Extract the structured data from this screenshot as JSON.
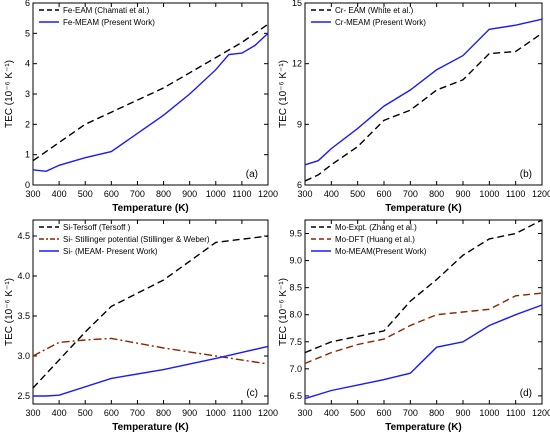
{
  "figure": {
    "panels": [
      "(a)",
      "(b)",
      "(c)",
      "(d)"
    ]
  },
  "chart_data": [
    {
      "type": "line",
      "panel_label": "(a)",
      "xlabel": "Temperature (K)",
      "ylabel": "TEC (10⁻⁶ K⁻¹)",
      "xlim": [
        300,
        1200
      ],
      "ylim": [
        0,
        6
      ],
      "xticks": [
        300,
        400,
        500,
        600,
        700,
        800,
        900,
        1000,
        1100,
        1200
      ],
      "yticks": [
        0,
        1,
        2,
        3,
        4,
        5,
        6
      ],
      "legend_position": "top-left",
      "series": [
        {
          "name": "Fe-EAM (Chamati et al.)",
          "color": "#000000",
          "style": "dashed",
          "x": [
            300,
            400,
            500,
            600,
            700,
            800,
            900,
            1000,
            1100,
            1200
          ],
          "y": [
            0.8,
            1.4,
            2.0,
            2.4,
            2.8,
            3.2,
            3.7,
            4.2,
            4.7,
            5.3
          ]
        },
        {
          "name": "Fe-MEAM (Present Work)",
          "color": "#1a1aff",
          "style": "solid",
          "x": [
            300,
            350,
            400,
            500,
            600,
            800,
            900,
            1000,
            1050,
            1100,
            1150,
            1200
          ],
          "y": [
            0.5,
            0.45,
            0.65,
            0.9,
            1.1,
            2.3,
            3.0,
            3.8,
            4.3,
            4.35,
            4.6,
            5.0
          ]
        }
      ]
    },
    {
      "type": "line",
      "panel_label": "(b)",
      "xlabel": "Temperature (K)",
      "ylabel": "TEC (10⁻⁶ K⁻¹)",
      "xlim": [
        300,
        1200
      ],
      "ylim": [
        6,
        15
      ],
      "xticks": [
        300,
        400,
        500,
        600,
        700,
        800,
        900,
        1000,
        1100,
        1200
      ],
      "yticks": [
        6,
        9,
        12,
        15
      ],
      "legend_position": "top-left",
      "series": [
        {
          "name": "Cr- EAM (White et al.)",
          "color": "#000000",
          "style": "dashed",
          "x": [
            300,
            350,
            400,
            500,
            600,
            700,
            800,
            900,
            1000,
            1100,
            1200
          ],
          "y": [
            6.2,
            6.5,
            7.0,
            7.9,
            9.2,
            9.7,
            10.7,
            11.2,
            12.5,
            12.6,
            13.5
          ]
        },
        {
          "name": "Cr-MEAM (Present Work)",
          "color": "#1a1aff",
          "style": "solid",
          "x": [
            300,
            350,
            400,
            500,
            600,
            700,
            800,
            900,
            1000,
            1100,
            1200
          ],
          "y": [
            7.0,
            7.2,
            7.8,
            8.8,
            9.9,
            10.7,
            11.7,
            12.4,
            13.7,
            13.9,
            14.2
          ]
        }
      ]
    },
    {
      "type": "line",
      "panel_label": "(c)",
      "xlabel": "Temperature (K)",
      "ylabel": "TEC (10⁻⁶ K⁻¹)",
      "xlim": [
        300,
        1200
      ],
      "ylim": [
        2.4,
        4.7
      ],
      "xticks": [
        300,
        400,
        500,
        600,
        700,
        800,
        900,
        1000,
        1100,
        1200
      ],
      "yticks": [
        2.5,
        3.0,
        3.5,
        4.0,
        4.5
      ],
      "legend_position": "top-left",
      "series": [
        {
          "name": "Si-Tersoff (Tersoff )",
          "color": "#000000",
          "style": "dashed",
          "x": [
            300,
            400,
            500,
            600,
            800,
            1000,
            1200
          ],
          "y": [
            2.6,
            2.95,
            3.3,
            3.62,
            3.95,
            4.42,
            4.5
          ]
        },
        {
          "name": "Si- Stillinger potential (Stillinger & Weber)",
          "color": "#8b2500",
          "style": "dashdot",
          "x": [
            300,
            400,
            500,
            600,
            800,
            1000,
            1200
          ],
          "y": [
            3.0,
            3.17,
            3.2,
            3.22,
            3.1,
            3.0,
            2.9
          ]
        },
        {
          "name": "Si- (MEAM- Present Work)",
          "color": "#1a1aff",
          "style": "solid",
          "x": [
            300,
            350,
            400,
            600,
            800,
            1000,
            1200
          ],
          "y": [
            2.5,
            2.5,
            2.51,
            2.72,
            2.83,
            2.97,
            3.12
          ]
        }
      ]
    },
    {
      "type": "line",
      "panel_label": "(d)",
      "xlabel": "Temperature (K)",
      "ylabel": "TEC (10⁻⁶ K⁻¹)",
      "xlim": [
        300,
        1200
      ],
      "ylim": [
        6.35,
        9.75
      ],
      "xticks": [
        300,
        400,
        500,
        600,
        700,
        800,
        900,
        1000,
        1100,
        1200
      ],
      "yticks": [
        6.5,
        7.0,
        7.5,
        8.0,
        8.5,
        9.0,
        9.5
      ],
      "legend_position": "top-left",
      "series": [
        {
          "name": "Mo-Expt. (Zhang et al.)",
          "color": "#000000",
          "style": "dashed",
          "x": [
            300,
            400,
            500,
            600,
            700,
            800,
            900,
            1000,
            1100,
            1200
          ],
          "y": [
            7.3,
            7.5,
            7.6,
            7.7,
            8.25,
            8.65,
            9.1,
            9.4,
            9.5,
            9.75
          ]
        },
        {
          "name": "Mo-DFT (Huang et al.)",
          "color": "#8b2500",
          "style": "dashed",
          "x": [
            300,
            400,
            500,
            600,
            700,
            800,
            900,
            1000,
            1100,
            1200
          ],
          "y": [
            7.1,
            7.3,
            7.45,
            7.55,
            7.8,
            8.0,
            8.05,
            8.1,
            8.35,
            8.4
          ]
        },
        {
          "name": "Mo-MEAM(Present Work)",
          "color": "#1a1aff",
          "style": "solid",
          "x": [
            300,
            400,
            500,
            600,
            700,
            800,
            900,
            1000,
            1100,
            1200
          ],
          "y": [
            6.45,
            6.6,
            6.7,
            6.8,
            6.92,
            7.4,
            7.5,
            7.8,
            8.0,
            8.18
          ]
        }
      ]
    }
  ]
}
